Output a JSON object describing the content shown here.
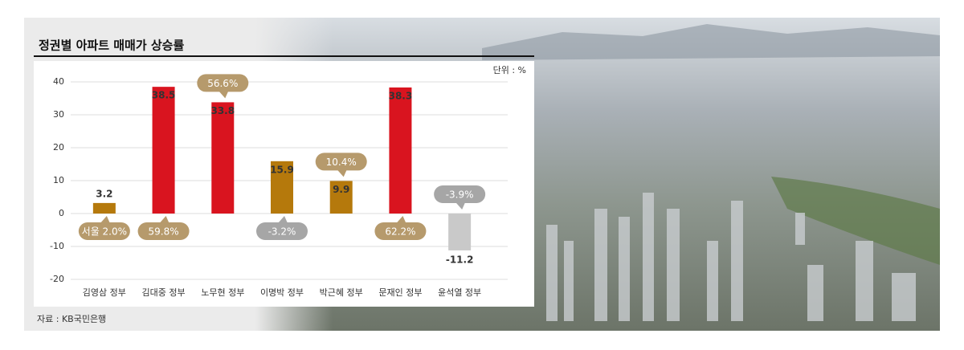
{
  "chart_data": {
    "type": "bar",
    "title": "정권별 아파트 매매가 상승률",
    "unit_note": "단위 : %",
    "source": "자료 : KB국민은행",
    "categories": [
      "김영삼 정부",
      "김대중 정부",
      "노무현 정부",
      "이명박 정부",
      "박근혜 정부",
      "문재인 정부",
      "윤석열 정부"
    ],
    "values": [
      3.2,
      38.5,
      33.8,
      15.9,
      9.9,
      38.3,
      -11.2
    ],
    "colors": [
      "#b5790c",
      "#d9141f",
      "#d9141f",
      "#b5790c",
      "#b5790c",
      "#d9141f",
      "#c9c9c9"
    ],
    "callouts": {
      "values": [
        2.0,
        59.8,
        56.6,
        -3.2,
        10.4,
        62.2,
        -3.9
      ],
      "value_labels": [
        "서울 2.0%",
        "59.8%",
        "56.6%",
        "-3.2%",
        "10.4%",
        "62.2%",
        "-3.9%"
      ]
    },
    "ylim": [
      -20,
      40
    ],
    "yticks": [
      -20,
      -10,
      0,
      10,
      20,
      30,
      40
    ],
    "grid": true
  }
}
